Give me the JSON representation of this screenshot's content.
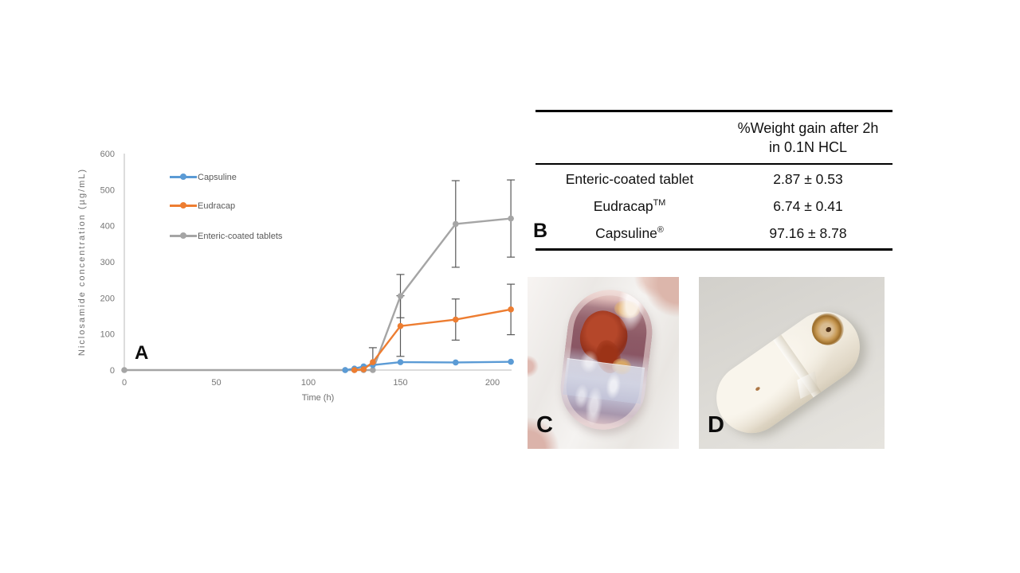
{
  "figure": {
    "panel_labels": {
      "a": "A",
      "b": "B",
      "c": "C",
      "d": "D"
    }
  },
  "chart_data": {
    "type": "line",
    "title": "",
    "xlabel": "Time (h)",
    "ylabel": "Niclosamide concentration (µg/mL)",
    "xlim": [
      0,
      215
    ],
    "ylim": [
      0,
      600
    ],
    "xticks": [
      0,
      50,
      100,
      150,
      200
    ],
    "yticks": [
      0,
      100,
      200,
      300,
      400,
      500,
      600
    ],
    "grid": false,
    "legend_position": "inside-top-left",
    "series": [
      {
        "name": "Capsuline",
        "color": "#5B9BD5",
        "points": [
          {
            "x": 120,
            "y": 0
          },
          {
            "x": 125,
            "y": 4
          },
          {
            "x": 130,
            "y": 10
          },
          {
            "x": 135,
            "y": 14
          },
          {
            "x": 150,
            "y": 22
          },
          {
            "x": 180,
            "y": 21
          },
          {
            "x": 210,
            "y": 23
          }
        ]
      },
      {
        "name": "Eudracap",
        "color": "#ED7D31",
        "points": [
          {
            "x": 125,
            "y": 0
          },
          {
            "x": 130,
            "y": 2
          },
          {
            "x": 135,
            "y": 22,
            "err": 40
          },
          {
            "x": 150,
            "y": 122,
            "err": 84
          },
          {
            "x": 180,
            "y": 140,
            "err": 57
          },
          {
            "x": 210,
            "y": 168,
            "err": 70
          }
        ]
      },
      {
        "name": "Enteric-coated tablets",
        "color": "#A5A5A5",
        "points": [
          {
            "x": 0,
            "y": 0
          },
          {
            "x": 120,
            "y": 0
          },
          {
            "x": 125,
            "y": 0
          },
          {
            "x": 130,
            "y": 0
          },
          {
            "x": 135,
            "y": 0
          },
          {
            "x": 150,
            "y": 205,
            "err": 60
          },
          {
            "x": 180,
            "y": 405,
            "err": 120
          },
          {
            "x": 210,
            "y": 420,
            "err": 107
          }
        ]
      }
    ]
  },
  "table": {
    "header_line1": "%Weight gain after 2h",
    "header_line2": "in 0.1N HCL",
    "rows": [
      {
        "label": "Enteric-coated tablet",
        "sup": "",
        "value": "2.87 ± 0.53"
      },
      {
        "label": "Eudracap",
        "sup": "TM",
        "value": "6.74 ± 0.41"
      },
      {
        "label": "Capsuline",
        "sup": "®",
        "value": "97.16 ± 8.78"
      }
    ]
  },
  "colors": {
    "series_blue": "#5B9BD5",
    "series_orange": "#ED7D31",
    "series_gray": "#A5A5A5",
    "axis_line": "#C6C6C6",
    "tick_text": "#767676",
    "error_bar": "#595959"
  }
}
